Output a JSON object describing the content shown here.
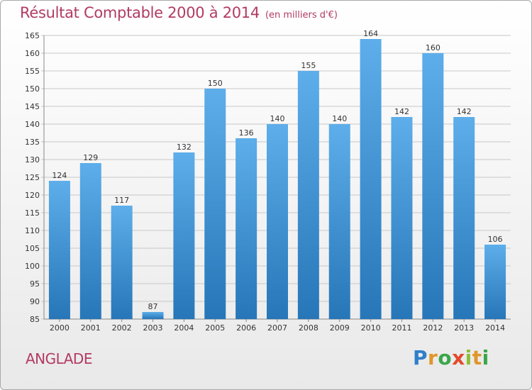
{
  "header": {
    "title": "Résultat Comptable 2000 à 2014",
    "unit": "(en milliers d'€)"
  },
  "footer": {
    "commune": "ANGLADE",
    "logo_text": "Proxiti"
  },
  "colors": {
    "title": "#b23a64",
    "bar_top": "#5daeea",
    "bar_bottom": "#2776b8",
    "grid": "#c8c8c8"
  },
  "chart_data": {
    "type": "bar",
    "categories": [
      "2000",
      "2001",
      "2002",
      "2003",
      "2004",
      "2005",
      "2006",
      "2007",
      "2008",
      "2009",
      "2010",
      "2011",
      "2012",
      "2013",
      "2014"
    ],
    "values": [
      124,
      129,
      117,
      87,
      132,
      150,
      136,
      140,
      155,
      140,
      164,
      142,
      160,
      142,
      106
    ],
    "title": "Résultat Comptable 2000 à 2014",
    "subtitle": "(en milliers d'€)",
    "xlabel": "",
    "ylabel": "",
    "ylim": [
      85,
      165
    ],
    "yticks": [
      85,
      90,
      95,
      100,
      105,
      110,
      115,
      120,
      125,
      130,
      135,
      140,
      145,
      150,
      155,
      160,
      165
    ],
    "grid": true,
    "data_labels": true
  }
}
